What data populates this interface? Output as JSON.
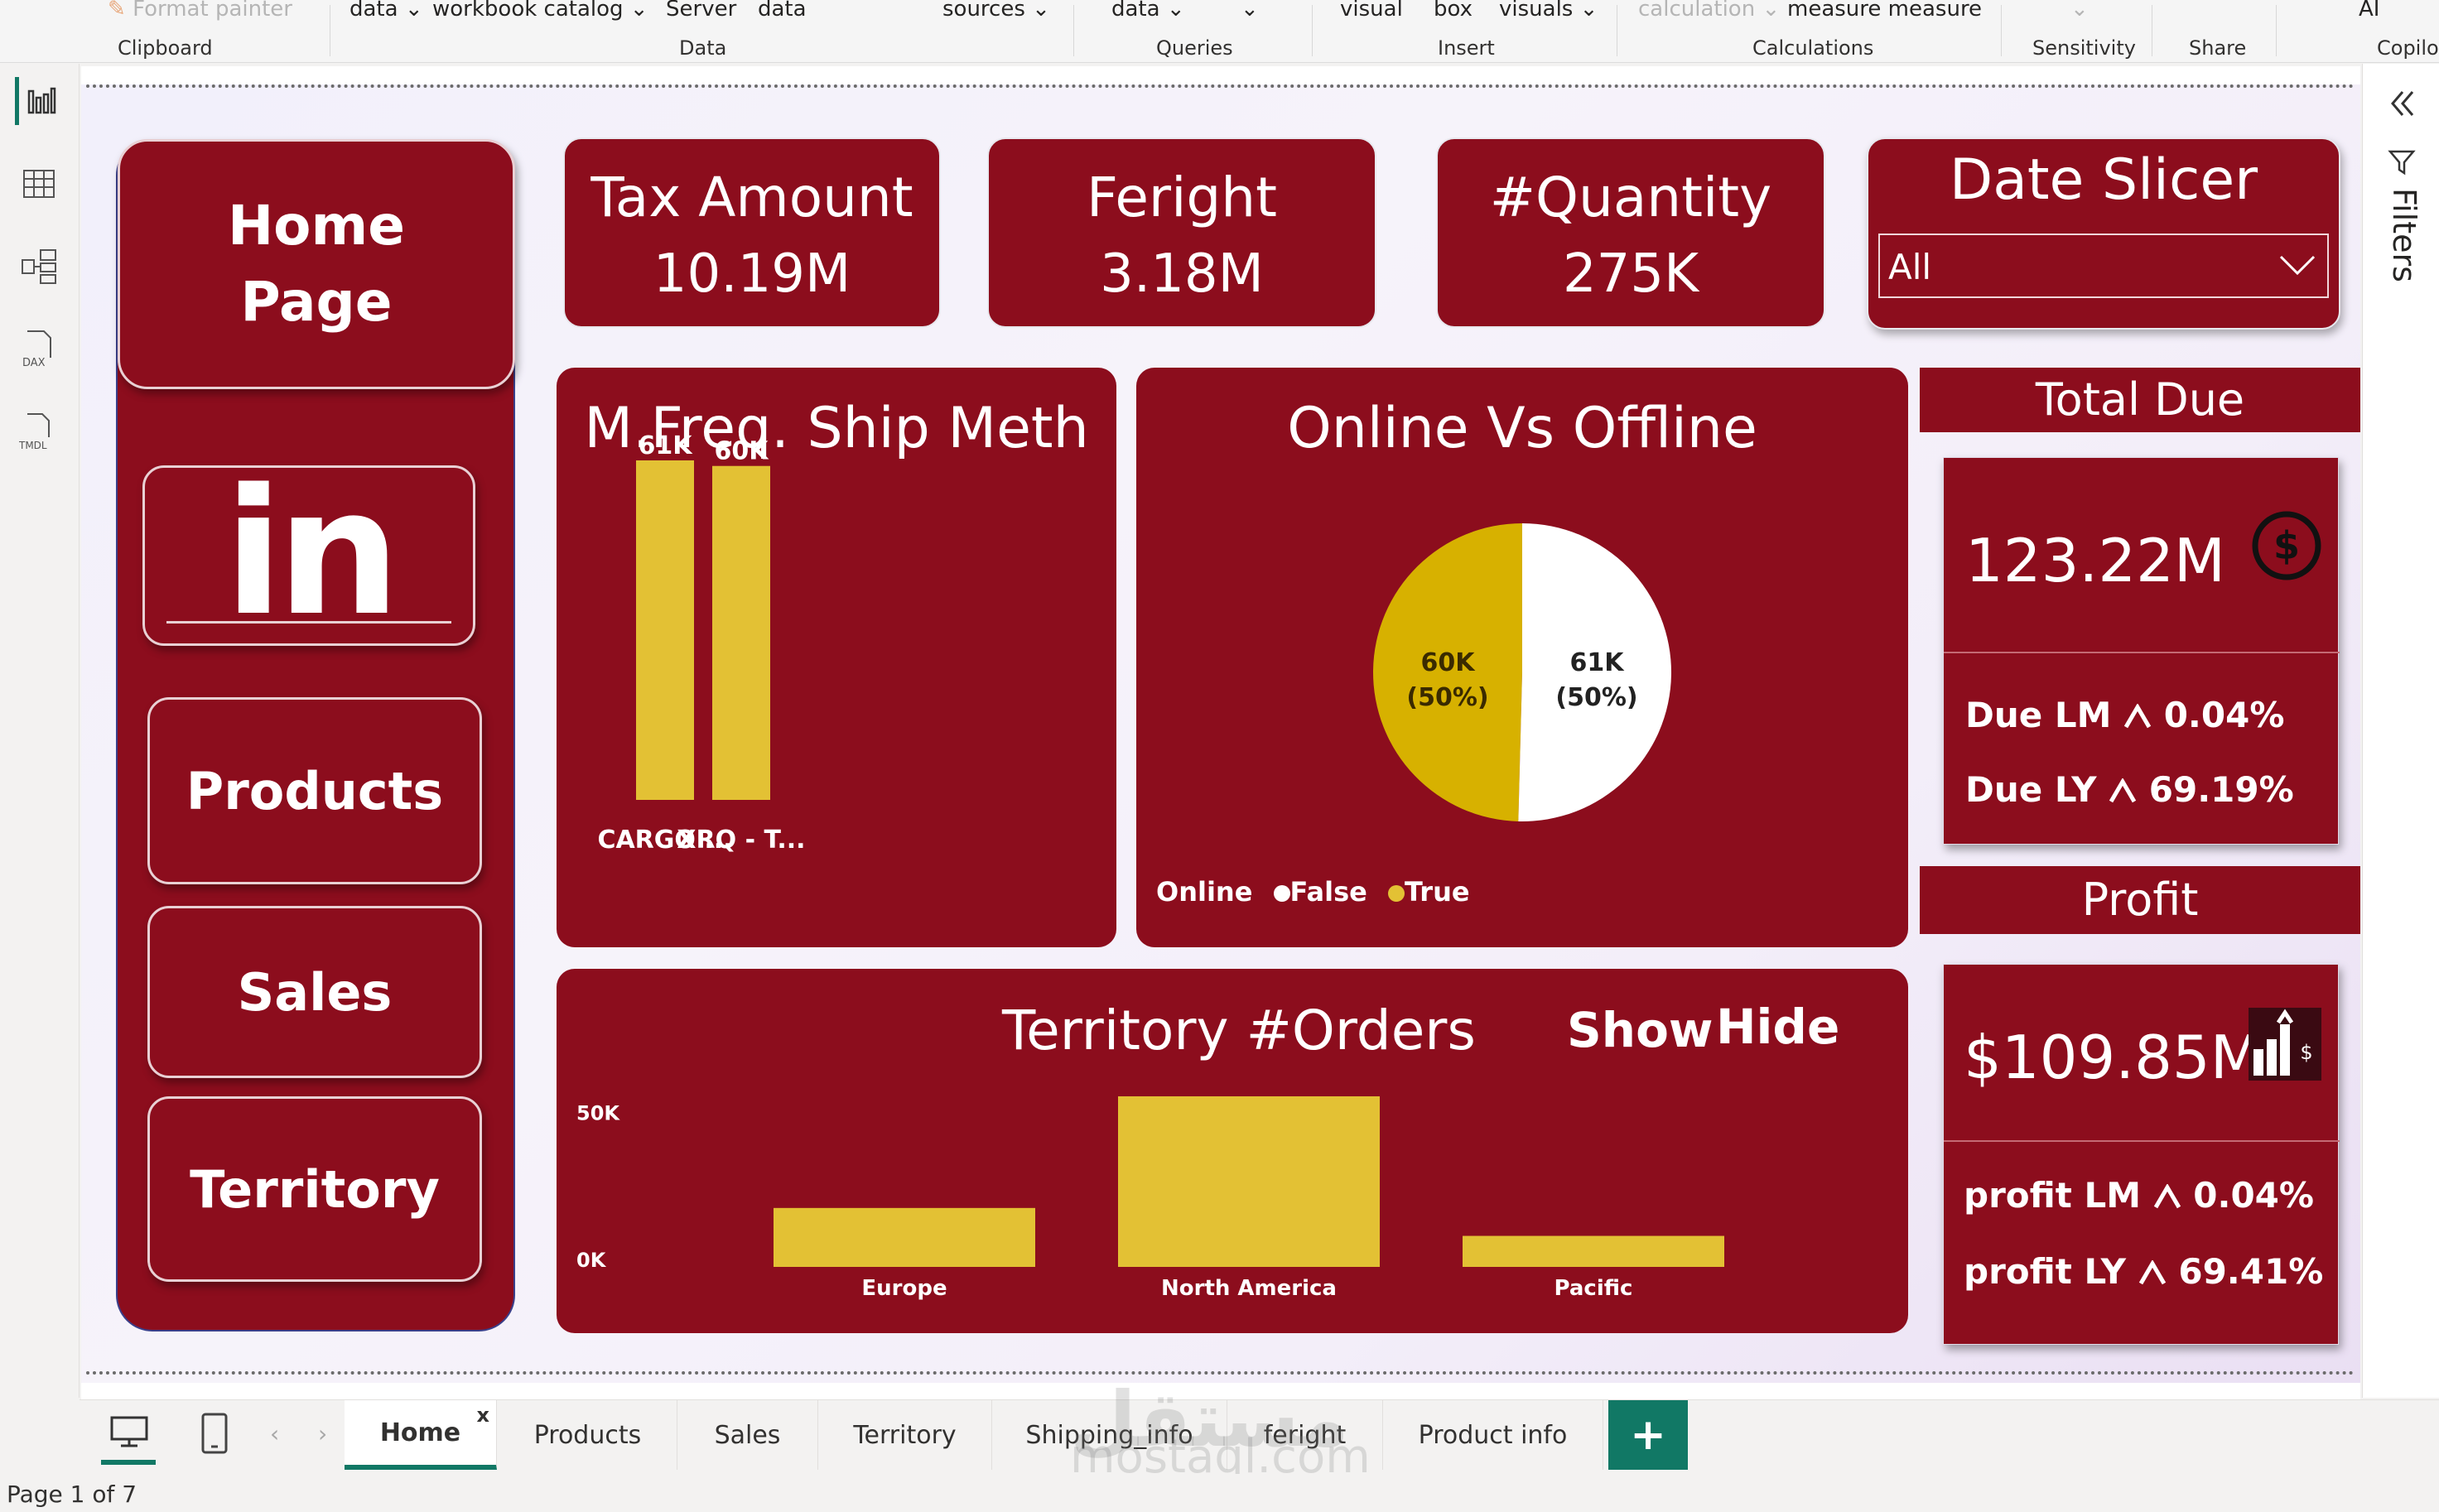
{
  "ribbon": {
    "top_items": [
      "Format painter",
      "data",
      "workbook catalog",
      "Server",
      "data",
      "sources",
      "data",
      "visual",
      "box",
      "visuals",
      "calculation",
      "measure measure",
      "AI"
    ],
    "groups": [
      "Clipboard",
      "Data",
      "Queries",
      "Insert",
      "Calculations",
      "Sensitivity",
      "Share",
      "Copilo"
    ]
  },
  "left_rail": {
    "icons": [
      "report-view-icon",
      "table-view-icon",
      "model-view-icon",
      "dax-query-icon",
      "tmdl-view-icon"
    ],
    "dax_label": "DAX",
    "tmdl_label": "TMDL"
  },
  "nav": {
    "home": "Home Page",
    "home_line1": "Home",
    "home_line2": "Page",
    "linkedin": "in",
    "products": "Products",
    "sales": "Sales",
    "territory": "Territory"
  },
  "kpis": [
    {
      "title": "Tax Amount",
      "value": "10.19M"
    },
    {
      "title": "Feright",
      "value": "3.18M"
    },
    {
      "title": "#Quantity",
      "value": "275K"
    }
  ],
  "slicer": {
    "title": "Date Slicer",
    "value": "All"
  },
  "ship_chart": {
    "title": "M.Freq. Ship Meth"
  },
  "pie_chart": {
    "title": "Online Vs Offline",
    "legend_title": "Online",
    "legend": [
      "False",
      "True"
    ]
  },
  "territory_chart": {
    "title": "Territory #Orders",
    "show": "Show",
    "hide": "Hide"
  },
  "total_due": {
    "header": "Total Due",
    "value": "123.22M",
    "lm_label": "Due LM",
    "lm_value": "0.04%",
    "ly_label": "Due LY",
    "ly_value": "69.19%"
  },
  "profit": {
    "header": "Profit",
    "value": "$109.85M",
    "lm_label": "profit LM",
    "lm_value": "0.04%",
    "ly_label": "profit LY",
    "ly_value": "69.41%"
  },
  "filters_label": "Filters",
  "tabs": [
    "Home",
    "Products",
    "Sales",
    "Territory",
    "Shipping_info",
    "feright",
    "Product info"
  ],
  "tab_close": "x",
  "add_tab": "+",
  "status": {
    "page": "Page 1 of 7"
  },
  "watermark": {
    "arabic": "مستقل",
    "latin": "mostaql.com"
  },
  "colors": {
    "card": "#8c0d1d",
    "bar": "#e3c134",
    "pie_true": "#d7b100",
    "pie_false": "#ffffff",
    "accent": "#117865"
  },
  "chart_data": [
    {
      "type": "bar",
      "title": "M.Freq. Ship Meth",
      "categories": [
        "CARGO ...",
        "XRQ - T..."
      ],
      "values": [
        61000,
        60000
      ],
      "data_labels": [
        "61K",
        "60K"
      ],
      "ylim": [
        0,
        61000
      ],
      "grid": false
    },
    {
      "type": "pie",
      "title": "Online Vs Offline",
      "legend_title": "Online",
      "legend_position": "bottom-left",
      "slices": [
        {
          "name": "True",
          "value": 60000,
          "label": "60K",
          "pct": "(50%)"
        },
        {
          "name": "False",
          "value": 61000,
          "label": "61K",
          "pct": "(50%)"
        }
      ]
    },
    {
      "type": "bar",
      "title": "Territory #Orders",
      "categories": [
        "Europe",
        "North America",
        "Pacific"
      ],
      "values": [
        19000,
        55000,
        10000
      ],
      "y_ticks": [
        "0K",
        "50K"
      ],
      "ylim": [
        0,
        55000
      ],
      "grid": false
    }
  ]
}
